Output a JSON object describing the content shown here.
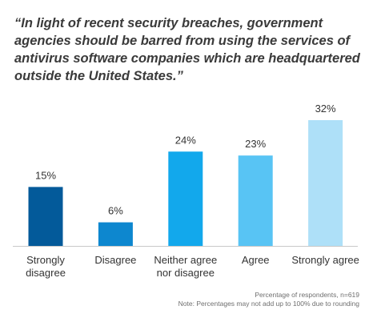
{
  "chart_data": {
    "type": "bar",
    "title": "“In light of recent security breaches, government agencies should be barred from using the services of antivirus software companies which are headquartered outside the United States.”",
    "categories": [
      "Strongly disagree",
      "Disagree",
      "Neither agree nor disagree",
      "Agree",
      "Strongly agree"
    ],
    "category_lines": [
      [
        "Strongly",
        "disagree"
      ],
      [
        "Disagree"
      ],
      [
        "Neither agree",
        "nor disagree"
      ],
      [
        "Agree"
      ],
      [
        "Strongly agree"
      ]
    ],
    "values": [
      15,
      6,
      24,
      23,
      32
    ],
    "value_labels": [
      "15%",
      "6%",
      "24%",
      "23%",
      "32%"
    ],
    "colors": [
      "#035a9a",
      "#0d87cf",
      "#12a8ec",
      "#58c4f4",
      "#aee0f8"
    ],
    "ylim": [
      0,
      32
    ],
    "grid": false,
    "xlabel": "",
    "ylabel": ""
  },
  "footer": {
    "note1": "Percentage of respondents, n=619",
    "note2": "Note: Percentages may not add up to 100% due to rounding"
  }
}
